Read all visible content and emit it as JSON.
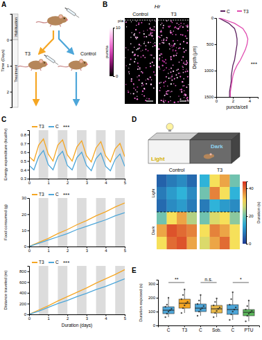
{
  "chart_data": [
    {
      "type": "diagram",
      "panel": "A",
      "y_label": "Time (Days)",
      "ylim": [
        -1,
        2.6
      ],
      "yticks": [
        0,
        1,
        2
      ],
      "stages": [
        {
          "label": "Habituation",
          "start": -1,
          "end": 0
        },
        {
          "label": "Treatment",
          "start": 0,
          "end": 2.6
        }
      ],
      "groups": [
        {
          "label": "T3",
          "color": "#f5a623"
        },
        {
          "label": "Control",
          "color": "#4da6d9"
        }
      ]
    },
    {
      "type": "line",
      "panel": "B",
      "title": "Hr",
      "images": [
        "Control",
        "T3"
      ],
      "image_annotation": "pia",
      "colorbar": {
        "label": "puncta",
        "range": [
          0,
          10
        ],
        "ticks": [
          0,
          10
        ]
      },
      "x_label": "puncta/cell",
      "y_label": "Depth (μm)",
      "xlim": [
        0,
        5
      ],
      "xticks": [
        0,
        2,
        4
      ],
      "ylim": [
        0,
        1500
      ],
      "yticks": [
        0,
        500,
        1000,
        1500
      ],
      "depth": [
        0,
        100,
        200,
        300,
        400,
        500,
        600,
        700,
        800,
        900,
        1000,
        1100,
        1200,
        1300,
        1400,
        1500
      ],
      "series": [
        {
          "name": "C",
          "color": "#5b1f5e",
          "values": [
            0.3,
            1.5,
            2.2,
            2.4,
            2.5,
            2.5,
            2.4,
            2.3,
            2.2,
            2.0,
            1.9,
            1.8,
            1.8,
            1.7,
            1.6,
            1.6
          ]
        },
        {
          "name": "T3",
          "color": "#e04cb0",
          "values": [
            0.4,
            2.2,
            3.2,
            3.6,
            3.8,
            3.7,
            3.5,
            3.2,
            2.9,
            2.5,
            2.2,
            2.0,
            1.9,
            1.8,
            1.7,
            1.7
          ]
        }
      ],
      "annotation": "***"
    },
    {
      "type": "line",
      "panel": "C",
      "y_label": "Energy expenditure (kcal/hr)",
      "xlim": [
        0,
        5
      ],
      "xticks": [
        0,
        1,
        2,
        3,
        4,
        5
      ],
      "ylim": [
        0.3,
        0.85
      ],
      "yticks": [
        0.3,
        0.4,
        0.5,
        0.6,
        0.7,
        0.8
      ],
      "night_periods": [
        [
          0.5,
          1
        ],
        [
          1.5,
          2
        ],
        [
          2.5,
          3
        ],
        [
          3.5,
          4
        ],
        [
          4.5,
          5
        ]
      ],
      "x": [
        0,
        0.25,
        0.5,
        0.75,
        1,
        1.25,
        1.5,
        1.75,
        2,
        2.25,
        2.5,
        2.75,
        3,
        3.25,
        3.5,
        3.75,
        4,
        4.25,
        4.5,
        4.75,
        5
      ],
      "series": [
        {
          "name": "T3",
          "color": "#f5a623",
          "values": [
            0.55,
            0.5,
            0.68,
            0.75,
            0.58,
            0.5,
            0.68,
            0.74,
            0.57,
            0.5,
            0.66,
            0.73,
            0.56,
            0.49,
            0.65,
            0.72,
            0.56,
            0.49,
            0.64,
            0.7,
            0.55
          ]
        },
        {
          "name": "C",
          "color": "#4da6d9",
          "values": [
            0.45,
            0.4,
            0.55,
            0.62,
            0.46,
            0.4,
            0.55,
            0.61,
            0.45,
            0.4,
            0.54,
            0.6,
            0.45,
            0.39,
            0.53,
            0.59,
            0.44,
            0.39,
            0.52,
            0.58,
            0.44
          ]
        }
      ],
      "annotation": "***"
    },
    {
      "type": "line",
      "y_label": "Food consumed (g)",
      "xlim": [
        0,
        5
      ],
      "xticks": [
        0,
        1,
        2,
        3,
        4,
        5
      ],
      "ylim": [
        0,
        30
      ],
      "yticks": [
        0,
        10,
        20,
        30
      ],
      "night_periods": [
        [
          0.5,
          1
        ],
        [
          1.5,
          2
        ],
        [
          2.5,
          3
        ],
        [
          3.5,
          4
        ],
        [
          4.5,
          5
        ]
      ],
      "x": [
        0,
        0.5,
        1,
        1.5,
        2,
        2.5,
        3,
        3.5,
        4,
        4.5,
        5
      ],
      "series": [
        {
          "name": "T3",
          "color": "#f5a623",
          "values": [
            0,
            2.5,
            5,
            8,
            10.5,
            13.5,
            16,
            19,
            21.5,
            24.5,
            27
          ]
        },
        {
          "name": "C",
          "color": "#4da6d9",
          "values": [
            0,
            2,
            4,
            6,
            8,
            10.5,
            12.5,
            14.5,
            16.5,
            19,
            21
          ]
        }
      ],
      "annotation": "***"
    },
    {
      "type": "line",
      "y_label": "Distance traveled (m)",
      "x_label": "Duration (days)",
      "xlim": [
        0,
        5
      ],
      "xticks": [
        0,
        1,
        2,
        3,
        4,
        5
      ],
      "ylim": [
        0,
        900
      ],
      "yticks": [
        0,
        200,
        400,
        600,
        800
      ],
      "night_periods": [
        [
          0.5,
          1
        ],
        [
          1.5,
          2
        ],
        [
          2.5,
          3
        ],
        [
          3.5,
          4
        ],
        [
          4.5,
          5
        ]
      ],
      "x": [
        0,
        0.5,
        1,
        1.5,
        2,
        2.5,
        3,
        3.5,
        4,
        4.5,
        5
      ],
      "series": [
        {
          "name": "T3",
          "color": "#f5a623",
          "values": [
            0,
            80,
            160,
            250,
            330,
            410,
            490,
            580,
            660,
            740,
            830
          ]
        },
        {
          "name": "C",
          "color": "#4da6d9",
          "values": [
            0,
            60,
            130,
            200,
            260,
            330,
            390,
            460,
            520,
            590,
            660
          ]
        }
      ],
      "annotation": "***"
    },
    {
      "type": "heatmap",
      "panel": "D",
      "chamber_labels": [
        "Light",
        "Dark"
      ],
      "row_labels": [
        "Light",
        "Dark"
      ],
      "maps": [
        {
          "title": "Control",
          "cells": [
            [
              5,
              8,
              10,
              6
            ],
            [
              8,
              12,
              15,
              10
            ],
            [
              6,
              10,
              12,
              8
            ],
            [
              20,
              30,
              35,
              25
            ],
            [
              35,
              42,
              40,
              38
            ],
            [
              30,
              40,
              42,
              35
            ]
          ]
        },
        {
          "title": "T3",
          "cells": [
            [
              15,
              30,
              35,
              20
            ],
            [
              20,
              38,
              30,
              15
            ],
            [
              8,
              15,
              12,
              10
            ],
            [
              20,
              28,
              30,
              22
            ],
            [
              30,
              38,
              35,
              30
            ],
            [
              28,
              35,
              40,
              30
            ]
          ]
        }
      ],
      "colorbar": {
        "label": "Duration (s)",
        "range": [
          0,
          45
        ],
        "ticks": [
          0,
          20,
          40
        ]
      }
    },
    {
      "type": "box",
      "panel": "E",
      "y_label": "Duration exposed (s)",
      "categories": [
        "C",
        "T3",
        "C",
        "Sob.",
        "C",
        "PTU"
      ],
      "colors": [
        "#4da6d9",
        "#f5a623",
        "#4da6d9",
        "#e8b84a",
        "#4da6d9",
        "#5cb85c"
      ],
      "ylim": [
        0,
        330
      ],
      "yticks": [
        0,
        100,
        200,
        300
      ],
      "min": [
        60,
        90,
        70,
        60,
        40,
        30
      ],
      "q1": [
        85,
        125,
        100,
        90,
        80,
        70
      ],
      "median": [
        110,
        160,
        125,
        120,
        115,
        95
      ],
      "q3": [
        135,
        190,
        155,
        145,
        150,
        115
      ],
      "max": [
        200,
        260,
        220,
        195,
        240,
        180
      ],
      "points": [
        [
          60,
          85,
          100,
          110,
          120,
          135,
          150,
          200
        ],
        [
          90,
          125,
          145,
          160,
          170,
          190,
          220,
          260
        ],
        [
          70,
          100,
          115,
          125,
          140,
          155,
          180,
          220
        ],
        [
          60,
          90,
          105,
          120,
          130,
          145,
          170,
          195
        ],
        [
          40,
          80,
          100,
          115,
          130,
          150,
          190,
          240
        ],
        [
          30,
          70,
          85,
          95,
          105,
          115,
          140,
          180
        ]
      ],
      "significance": [
        "**",
        "n.s.",
        "*"
      ]
    }
  ]
}
